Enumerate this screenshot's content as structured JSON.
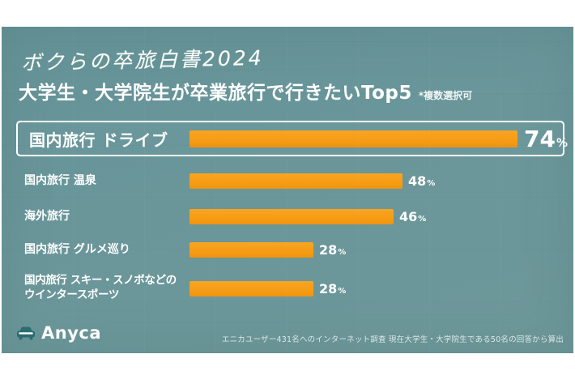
{
  "header": {
    "handwritten_title": "ボクらの卒旅白書2024",
    "title": "大学生・大学院生が卒業旅行で行きたいTop5",
    "note": "*複数選択可"
  },
  "chart_data": {
    "type": "bar",
    "orientation": "horizontal",
    "title": "大学生・大学院生が卒業旅行で行きたいTop5",
    "subtitle": "ボクらの卒旅白書2024",
    "annotation": "*複数選択可",
    "unit": "%",
    "categories": [
      "国内旅行 ドライブ",
      "国内旅行 温泉",
      "海外旅行",
      "国内旅行 グルメ巡り",
      "国内旅行 スキー・スノボなどの\nウインタースポーツ"
    ],
    "values": [
      74,
      48,
      46,
      28,
      28
    ],
    "scale_max": 74,
    "highlight_index": 0,
    "bar_color": "#f79d15",
    "legend": "none",
    "grid": false
  },
  "footer": {
    "logo_text": "Anyca",
    "source_note": "エニカユーザー431名へのインターネット調査 現在大学生・大学院生である50名の回答から算出"
  },
  "colors": {
    "card_background": "#6a969a",
    "bar_orange": "#f79d15",
    "text_white": "#ffffff",
    "footer_note": "#dce8e7"
  }
}
